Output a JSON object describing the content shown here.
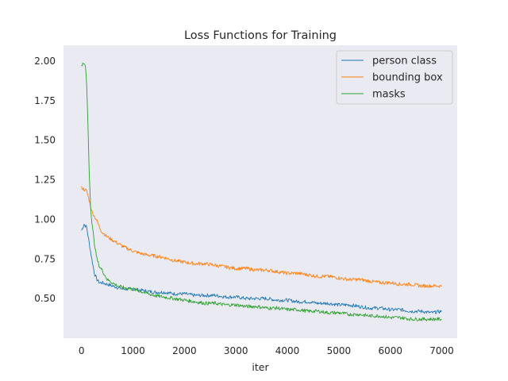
{
  "chart_data": {
    "type": "line",
    "title": "Loss Functions for Training",
    "xlabel": "iter",
    "ylabel": "",
    "xlim": [
      -350,
      7300
    ],
    "ylim": [
      0.25,
      2.1
    ],
    "xticks": [
      0,
      1000,
      2000,
      3000,
      4000,
      5000,
      6000,
      7000
    ],
    "yticks": [
      0.5,
      0.75,
      1.0,
      1.25,
      1.5,
      1.75,
      2.0
    ],
    "xtick_labels": [
      "0",
      "1000",
      "2000",
      "3000",
      "4000",
      "5000",
      "6000",
      "7000"
    ],
    "ytick_labels": [
      "0.50",
      "0.75",
      "1.00",
      "1.25",
      "1.50",
      "1.75",
      "2.00"
    ],
    "grid": false,
    "background": "#eaeaf2",
    "legend_position": "top-right",
    "series": [
      {
        "name": "person class",
        "color": "#1f77b4",
        "x": [
          0,
          50,
          100,
          150,
          200,
          250,
          300,
          350,
          400,
          500,
          600,
          700,
          800,
          1000,
          1200,
          1400,
          1600,
          1800,
          2000,
          2200,
          2400,
          2600,
          2800,
          3000,
          3200,
          3400,
          3600,
          3800,
          4000,
          4200,
          4400,
          4600,
          4800,
          5000,
          5200,
          5400,
          5600,
          5800,
          6000,
          6200,
          6400,
          6600,
          6800,
          7000
        ],
        "values": [
          0.93,
          0.97,
          0.95,
          0.85,
          0.75,
          0.66,
          0.62,
          0.6,
          0.6,
          0.59,
          0.58,
          0.57,
          0.56,
          0.56,
          0.55,
          0.54,
          0.54,
          0.53,
          0.53,
          0.52,
          0.52,
          0.52,
          0.51,
          0.51,
          0.5,
          0.5,
          0.5,
          0.49,
          0.49,
          0.48,
          0.48,
          0.47,
          0.47,
          0.46,
          0.46,
          0.45,
          0.44,
          0.44,
          0.43,
          0.43,
          0.42,
          0.42,
          0.41,
          0.42
        ]
      },
      {
        "name": "bounding box",
        "color": "#ff7f0e",
        "x": [
          0,
          50,
          100,
          150,
          200,
          250,
          300,
          350,
          400,
          500,
          600,
          700,
          800,
          1000,
          1200,
          1400,
          1600,
          1800,
          2000,
          2200,
          2400,
          2600,
          2800,
          3000,
          3200,
          3400,
          3600,
          3800,
          4000,
          4200,
          4400,
          4600,
          4800,
          5000,
          5200,
          5400,
          5600,
          5800,
          6000,
          6200,
          6400,
          6600,
          6800,
          7000
        ],
        "values": [
          1.2,
          1.19,
          1.18,
          1.12,
          1.05,
          1.02,
          0.99,
          0.95,
          0.92,
          0.89,
          0.87,
          0.85,
          0.83,
          0.8,
          0.78,
          0.77,
          0.76,
          0.74,
          0.73,
          0.72,
          0.72,
          0.71,
          0.7,
          0.69,
          0.69,
          0.68,
          0.68,
          0.67,
          0.66,
          0.66,
          0.65,
          0.64,
          0.64,
          0.63,
          0.62,
          0.62,
          0.61,
          0.6,
          0.6,
          0.59,
          0.59,
          0.58,
          0.58,
          0.58
        ]
      },
      {
        "name": "masks",
        "color": "#2ca02c",
        "x": [
          0,
          25,
          50,
          75,
          100,
          125,
          150,
          175,
          200,
          250,
          300,
          350,
          400,
          450,
          500,
          600,
          700,
          800,
          1000,
          1200,
          1400,
          1600,
          1800,
          2000,
          2200,
          2400,
          2600,
          2800,
          3000,
          3200,
          3400,
          3600,
          3800,
          4000,
          4200,
          4400,
          4600,
          4800,
          5000,
          5200,
          5400,
          5600,
          5800,
          6000,
          6200,
          6400,
          6600,
          6800,
          7000
        ],
        "values": [
          1.98,
          1.98,
          1.98,
          1.97,
          1.85,
          1.6,
          1.3,
          1.1,
          0.98,
          0.85,
          0.75,
          0.7,
          0.68,
          0.65,
          0.62,
          0.6,
          0.58,
          0.57,
          0.56,
          0.54,
          0.52,
          0.51,
          0.5,
          0.49,
          0.48,
          0.47,
          0.47,
          0.46,
          0.46,
          0.45,
          0.45,
          0.44,
          0.44,
          0.43,
          0.43,
          0.42,
          0.42,
          0.41,
          0.41,
          0.4,
          0.4,
          0.39,
          0.39,
          0.38,
          0.38,
          0.37,
          0.37,
          0.37,
          0.37
        ]
      }
    ]
  }
}
